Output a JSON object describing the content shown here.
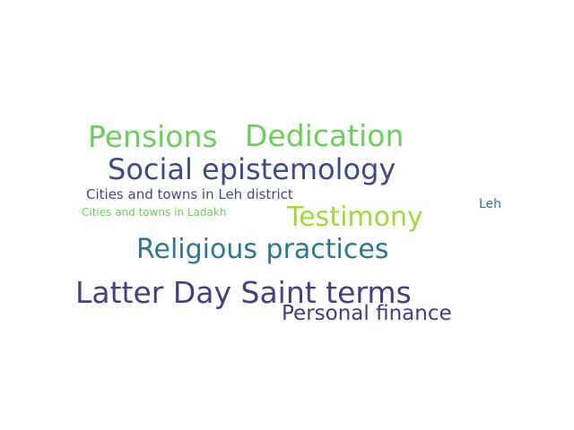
{
  "words": [
    {
      "text": "Pensions",
      "color": "#6cce5a"
    },
    {
      "text": "Dedication",
      "color": "#6cce5a"
    },
    {
      "text": "Social epistemology",
      "color": "#3e4a89"
    },
    {
      "text": "Cities and towns in Leh district",
      "color": "#3e4a89"
    },
    {
      "text": "Testimony",
      "color": "#a0da39"
    },
    {
      "text": "Leh",
      "color": "#2a788e"
    },
    {
      "text": "Cities and towns in Ladakh",
      "color": "#6cce5a"
    },
    {
      "text": "Religious practices",
      "color": "#2a788e"
    },
    {
      "text": "Latter Day Saint terms",
      "color": "#433e85"
    },
    {
      "text": "Personal finance",
      "color": "#443983"
    }
  ]
}
